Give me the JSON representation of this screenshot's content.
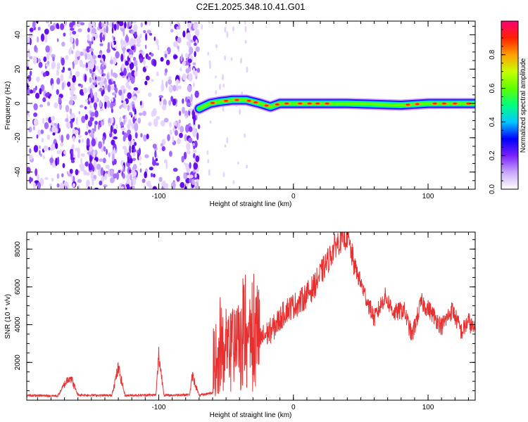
{
  "figure_title": "C2E1.2025.348.10.41.G01",
  "chart_data": [
    {
      "type": "heatmap",
      "title": "C2E1.2025.348.10.41.G01",
      "xlabel": "Height of straight line (km)",
      "ylabel": "Frequency (Hz)",
      "xlim": [
        -198,
        135
      ],
      "ylim": [
        -50,
        48
      ],
      "xticks": [
        -100,
        0,
        100
      ],
      "xtick_labels": [
        "-100",
        "0",
        "100"
      ],
      "yticks": [
        -40,
        -20,
        0,
        20,
        40
      ],
      "ytick_labels": [
        "-40",
        "-20",
        "0",
        "20",
        "40"
      ],
      "noise_region_km": [
        -198,
        -70
      ],
      "trace_points": [
        {
          "x": -70,
          "y": -3
        },
        {
          "x": -62,
          "y": 0
        },
        {
          "x": -55,
          "y": 1
        },
        {
          "x": -45,
          "y": 2
        },
        {
          "x": -35,
          "y": 2
        },
        {
          "x": -25,
          "y": 0
        },
        {
          "x": -17,
          "y": -2
        },
        {
          "x": -10,
          "y": 0
        },
        {
          "x": 0,
          "y": 0
        },
        {
          "x": 40,
          "y": 0
        },
        {
          "x": 80,
          "y": -1
        },
        {
          "x": 100,
          "y": 0
        },
        {
          "x": 135,
          "y": 0
        }
      ],
      "colorbar": {
        "label": "Normalized spectral amplitude",
        "range": [
          0,
          1
        ],
        "ticks": [
          0.0,
          0.2,
          0.4,
          0.6,
          0.8
        ],
        "tick_labels": [
          "0.0",
          "0.2",
          "0.4",
          "0.6",
          "0.8"
        ],
        "colors": [
          "#ffffff",
          "#c8a8ff",
          "#7a20ff",
          "#0000ff",
          "#00c8ff",
          "#00ff80",
          "#60ff00",
          "#c8ff00",
          "#ffa000",
          "#ff2000",
          "#ff0078"
        ]
      }
    },
    {
      "type": "line",
      "xlabel": "Height of straight line (km)",
      "ylabel": "SNR (10 * v/v)",
      "xlim": [
        -198,
        135
      ],
      "ylim": [
        0,
        8900
      ],
      "xticks": [
        -100,
        0,
        100
      ],
      "xtick_labels": [
        "-100",
        "0",
        "100"
      ],
      "yticks": [
        2000,
        4000,
        6000,
        8000
      ],
      "ytick_labels": [
        "2000",
        "4000",
        "6000",
        "8000"
      ],
      "line_color": "#e83030",
      "series": [
        {
          "name": "SNR",
          "points": [
            {
              "x": -198,
              "y": 250
            },
            {
              "x": -175,
              "y": 230
            },
            {
              "x": -166,
              "y": 1300
            },
            {
              "x": -160,
              "y": 280
            },
            {
              "x": -135,
              "y": 250
            },
            {
              "x": -130,
              "y": 1700
            },
            {
              "x": -125,
              "y": 250
            },
            {
              "x": -102,
              "y": 280
            },
            {
              "x": -100,
              "y": 2400
            },
            {
              "x": -96,
              "y": 250
            },
            {
              "x": -77,
              "y": 300
            },
            {
              "x": -75,
              "y": 1300
            },
            {
              "x": -70,
              "y": 250
            },
            {
              "x": -60,
              "y": 400
            },
            {
              "x": -55,
              "y": 2400
            },
            {
              "x": -45,
              "y": 2500
            },
            {
              "x": -35,
              "y": 3200
            },
            {
              "x": -25,
              "y": 3200
            },
            {
              "x": -15,
              "y": 3800
            },
            {
              "x": -5,
              "y": 4800
            },
            {
              "x": 5,
              "y": 5200
            },
            {
              "x": 15,
              "y": 6000
            },
            {
              "x": 25,
              "y": 7300
            },
            {
              "x": 32,
              "y": 8300
            },
            {
              "x": 40,
              "y": 8700
            },
            {
              "x": 45,
              "y": 7200
            },
            {
              "x": 52,
              "y": 5800
            },
            {
              "x": 60,
              "y": 4300
            },
            {
              "x": 68,
              "y": 5500
            },
            {
              "x": 75,
              "y": 4600
            },
            {
              "x": 82,
              "y": 4800
            },
            {
              "x": 88,
              "y": 3400
            },
            {
              "x": 95,
              "y": 5200
            },
            {
              "x": 102,
              "y": 4700
            },
            {
              "x": 110,
              "y": 3900
            },
            {
              "x": 118,
              "y": 4800
            },
            {
              "x": 125,
              "y": 3600
            },
            {
              "x": 130,
              "y": 4200
            },
            {
              "x": 135,
              "y": 3600
            }
          ]
        }
      ]
    }
  ]
}
